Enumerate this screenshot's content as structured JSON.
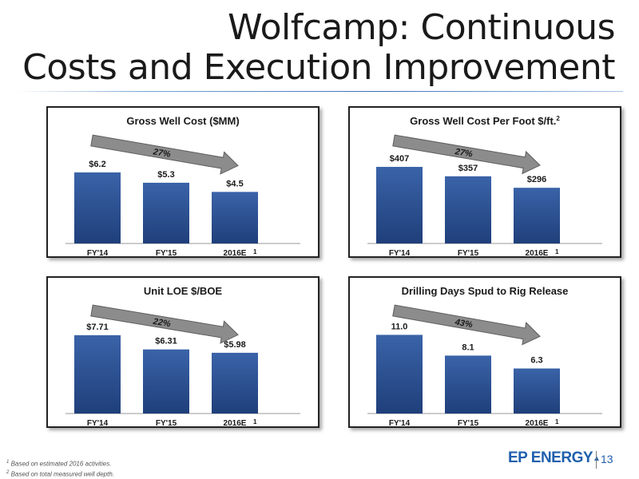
{
  "header": {
    "title_line1": "Wolfcamp: Continuous",
    "title_line2": "Costs and Execution Improvement"
  },
  "colors": {
    "bar": "#1f3f7a",
    "bar_light": "#3a63a8",
    "arrow": "#8c8c8c",
    "accent": "#1f5fae"
  },
  "chart_data": [
    {
      "type": "bar",
      "title": "Gross Well Cost ($MM)",
      "title_sup": "",
      "categories": [
        "FY'14",
        "FY'15",
        "2016E"
      ],
      "category_sups": [
        "",
        "",
        "1"
      ],
      "values": [
        6.2,
        5.3,
        4.5
      ],
      "value_labels": [
        "$6.2",
        "$5.3",
        "$4.5"
      ],
      "ylim": [
        0,
        7.8
      ],
      "trend_label": "27%"
    },
    {
      "type": "bar",
      "title": "Gross Well Cost Per Foot $/ft.",
      "title_sup": "2",
      "categories": [
        "FY'14",
        "FY'15",
        "2016E"
      ],
      "category_sups": [
        "",
        "",
        "1"
      ],
      "values": [
        407,
        357,
        296
      ],
      "value_labels": [
        "$407",
        "$357",
        "$296"
      ],
      "ylim": [
        0,
        475
      ],
      "trend_label": "27%"
    },
    {
      "type": "bar",
      "title": "Unit LOE $/BOE",
      "title_sup": "",
      "categories": [
        "FY'14",
        "FY'15",
        "2016E"
      ],
      "category_sups": [
        "",
        "",
        "1"
      ],
      "values": [
        7.71,
        6.31,
        5.98
      ],
      "value_labels": [
        "$7.71",
        "$6.31",
        "$5.98"
      ],
      "ylim": [
        0,
        8.8
      ],
      "trend_label": "22%"
    },
    {
      "type": "bar",
      "title": "Drilling Days Spud to Rig Release",
      "title_sup": "",
      "categories": [
        "FY'14",
        "FY'15",
        "2016E"
      ],
      "category_sups": [
        "",
        "",
        "1"
      ],
      "values": [
        11.0,
        8.1,
        6.3
      ],
      "value_labels": [
        "11.0",
        "8.1",
        "6.3"
      ],
      "ylim": [
        0,
        12.5
      ],
      "trend_label": "43%"
    }
  ],
  "footnotes": {
    "note1_marker": "1",
    "note1": "Based on estimated 2016 activities.",
    "note2_marker": "2",
    "note2": "Based on total measured well depth."
  },
  "footer": {
    "logo_text": "EP ENERGY",
    "page_number": "13"
  }
}
